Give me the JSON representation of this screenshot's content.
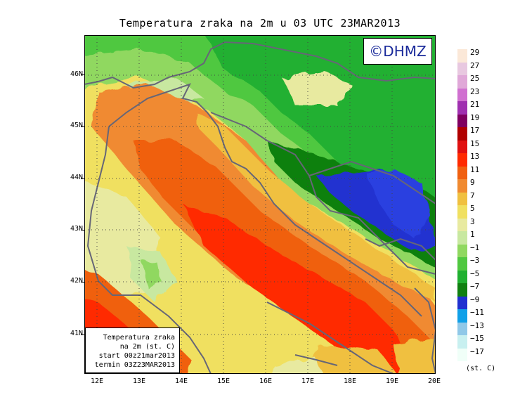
{
  "title": "Temperatura zraka na 2m u 03 UTC 23MAR2013",
  "logo": "©DHMZ",
  "info_box": {
    "line1": "Temperatura zraka",
    "line2": "na 2m (st. C)",
    "line3": "start 00z21mar2013",
    "line4": "termin 03Z23MAR2013"
  },
  "axes": {
    "lat_labels": [
      "46N",
      "45N",
      "44N",
      "43N",
      "42N",
      "41N"
    ],
    "lon_labels": [
      "12E",
      "13E",
      "14E",
      "15E",
      "16E",
      "17E",
      "18E",
      "19E",
      "20E"
    ],
    "lon_range": [
      11.7,
      20.0
    ],
    "lat_range": [
      40.25,
      46.8
    ]
  },
  "legend": {
    "unit": "(st. C)",
    "labels": [
      "29",
      "27",
      "25",
      "23",
      "21",
      "19",
      "17",
      "15",
      "13",
      "11",
      "9",
      "7",
      "5",
      "3",
      "1",
      "−1",
      "−3",
      "−5",
      "−7",
      "−9",
      "−11",
      "−13",
      "−15",
      "−17"
    ],
    "colors": [
      "#fbe8d8",
      "#e8c8e0",
      "#e0a8d8",
      "#d070d0",
      "#a030b0",
      "#800060",
      "#b00000",
      "#e01010",
      "#ff2a00",
      "#f06010",
      "#f08a30",
      "#f0c040",
      "#f0e060",
      "#e8eaa0",
      "#c8e8a0",
      "#90d860",
      "#50c840",
      "#20b030",
      "#108010",
      "#2030d0",
      "#10a0e8",
      "#90c8e8",
      "#c8f0f0",
      "#f0fff8"
    ]
  }
}
